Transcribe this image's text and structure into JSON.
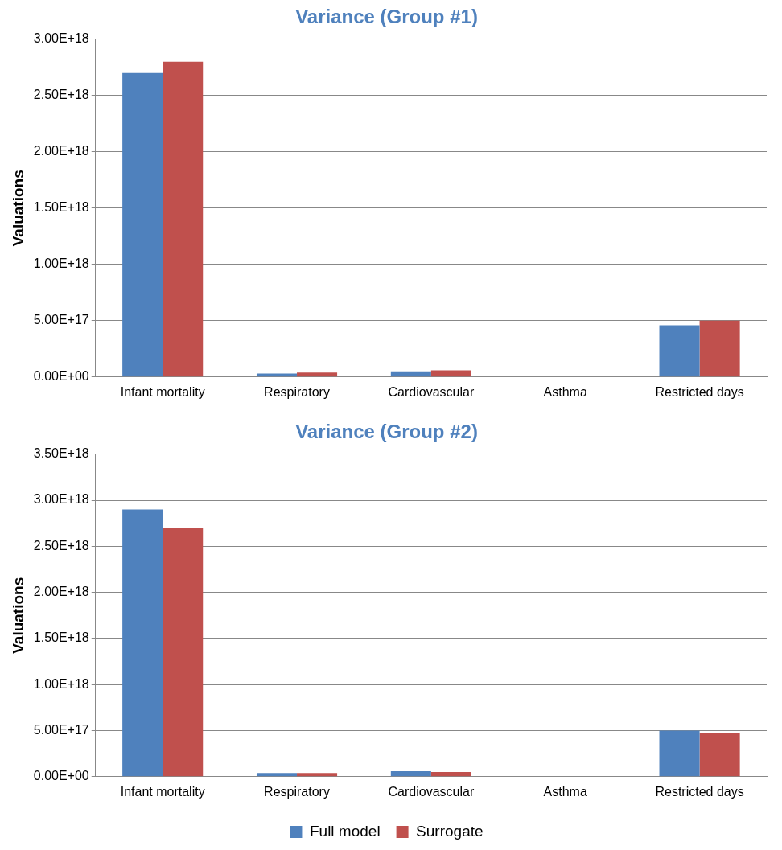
{
  "chart_data": [
    {
      "type": "bar",
      "title": "Variance (Group #1)",
      "ylabel": "Valuations",
      "categories": [
        "Infant mortality",
        "Respiratory",
        "Cardiovascular",
        "Asthma",
        "Restricted days"
      ],
      "series": [
        {
          "color": "#4f81bd",
          "values": [
            2.7e+18,
            3e+16,
            5e+16,
            0,
            4.6e+17
          ]
        },
        {
          "color": "#c0504d",
          "values": [
            2.8e+18,
            4e+16,
            6e+16,
            0,
            5e+17
          ]
        }
      ],
      "ylim": [
        0,
        3e+18
      ],
      "yticks": [
        {
          "value": 0,
          "label": "0.00E+00"
        },
        {
          "value": 5e+17,
          "label": "5.00E+17"
        },
        {
          "value": 1e+18,
          "label": "1.00E+18"
        },
        {
          "value": 1.5e+18,
          "label": "1.50E+18"
        },
        {
          "value": 2e+18,
          "label": "2.00E+18"
        },
        {
          "value": 2.5e+18,
          "label": "2.50E+18"
        },
        {
          "value": 3e+18,
          "label": "3.00E+18"
        }
      ],
      "grid": "y"
    },
    {
      "type": "bar",
      "title": "Variance (Group #2)",
      "ylabel": "Valuations",
      "categories": [
        "Infant mortality",
        "Respiratory",
        "Cardiovascular",
        "Asthma",
        "Restricted days"
      ],
      "series": [
        {
          "name": "Full model",
          "color": "#4f81bd",
          "values": [
            2.9e+18,
            4e+16,
            6e+16,
            0,
            5e+17
          ]
        },
        {
          "name": "Surrogate",
          "color": "#c0504d",
          "values": [
            2.7e+18,
            4e+16,
            5e+16,
            0,
            4.7e+17
          ]
        }
      ],
      "ylim": [
        0,
        3.5e+18
      ],
      "yticks": [
        {
          "value": 0,
          "label": "0.00E+00"
        },
        {
          "value": 5e+17,
          "label": "5.00E+17"
        },
        {
          "value": 1e+18,
          "label": "1.00E+18"
        },
        {
          "value": 1.5e+18,
          "label": "1.50E+18"
        },
        {
          "value": 2e+18,
          "label": "2.00E+18"
        },
        {
          "value": 2.5e+18,
          "label": "2.50E+18"
        },
        {
          "value": 3e+18,
          "label": "3.00E+18"
        },
        {
          "value": 3.5e+18,
          "label": "3.50E+18"
        }
      ],
      "grid": "y",
      "legend": "bottom"
    }
  ]
}
